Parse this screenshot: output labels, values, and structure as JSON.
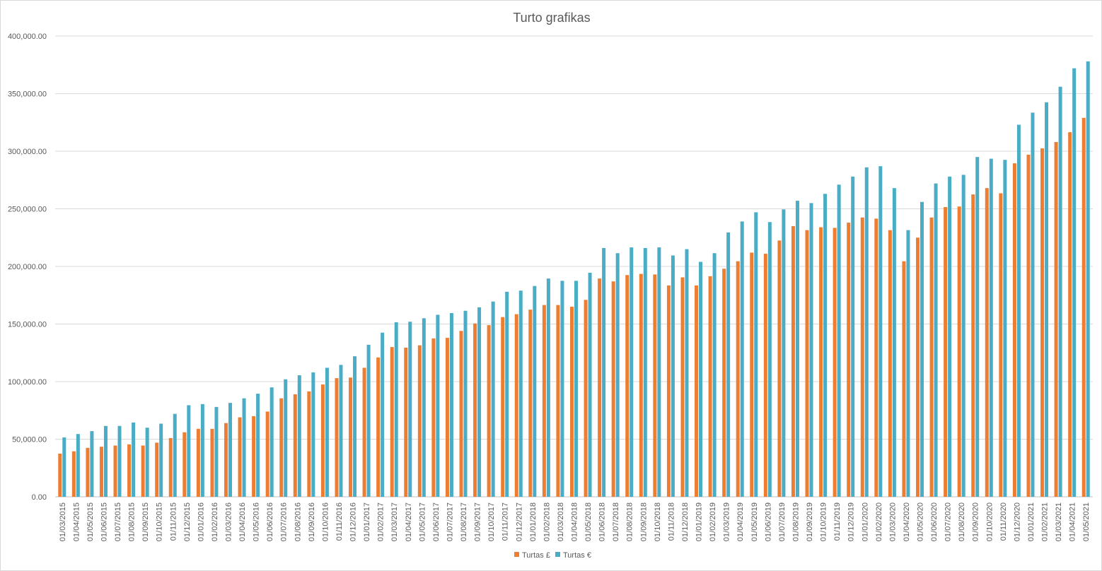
{
  "chart_data": {
    "type": "bar",
    "title": "Turto grafikas",
    "xlabel": "",
    "ylabel": "",
    "ylim": [
      0,
      400000
    ],
    "yticks": [
      "0.00",
      "50,000.00",
      "100,000.00",
      "150,000.00",
      "200,000.00",
      "250,000.00",
      "300,000.00",
      "350,000.00",
      "400,000.00"
    ],
    "grid": true,
    "legend_position": "bottom",
    "categories": [
      "01/03/2015",
      "01/04/2015",
      "01/05/2015",
      "01/06/2015",
      "01/07/2015",
      "01/08/2015",
      "01/09/2015",
      "01/10/2015",
      "01/11/2015",
      "01/12/2015",
      "01/01/2016",
      "01/02/2016",
      "01/03/2016",
      "01/04/2016",
      "01/05/2016",
      "01/06/2016",
      "01/07/2016",
      "01/08/2016",
      "01/09/2016",
      "01/10/2016",
      "01/11/2016",
      "01/12/2016",
      "01/01/2017",
      "01/02/2017",
      "01/03/2017",
      "01/04/2017",
      "01/05/2017",
      "01/06/2017",
      "01/07/2017",
      "01/08/2017",
      "01/09/2017",
      "01/10/2017",
      "01/11/2017",
      "01/12/2017",
      "01/01/2018",
      "01/02/2018",
      "01/03/2018",
      "01/04/2018",
      "01/05/2018",
      "01/06/2018",
      "01/07/2018",
      "01/08/2018",
      "01/09/2018",
      "01/10/2018",
      "01/11/2018",
      "01/12/2018",
      "01/01/2019",
      "01/02/2019",
      "01/03/2019",
      "01/04/2019",
      "01/05/2019",
      "01/06/2019",
      "01/07/2019",
      "01/08/2019",
      "01/09/2019",
      "01/10/2019",
      "01/11/2019",
      "01/12/2019",
      "01/01/2020",
      "01/02/2020",
      "01/03/2020",
      "01/04/2020",
      "01/05/2020",
      "01/06/2020",
      "01/07/2020",
      "01/08/2020",
      "01/09/2020",
      "01/10/2020",
      "01/11/2020",
      "01/12/2020",
      "01/01/2021",
      "01/02/2021",
      "01/03/2021",
      "01/04/2021",
      "01/05/2021"
    ],
    "series": [
      {
        "name": "Turtas £",
        "color": "#ED7D31",
        "values": [
          37500,
          39500,
          42500,
          43500,
          44500,
          45500,
          44500,
          47000,
          51000,
          56000,
          59000,
          59000,
          64000,
          69000,
          70000,
          74000,
          85500,
          89000,
          91500,
          97500,
          103000,
          103500,
          112000,
          121000,
          130000,
          129500,
          131500,
          137500,
          138000,
          144000,
          150500,
          149000,
          156000,
          158500,
          162500,
          166500,
          166500,
          165000,
          171000,
          189500,
          187000,
          192500,
          193500,
          193000,
          183500,
          190500,
          183500,
          191500,
          198000,
          204500,
          212000,
          211000,
          222500,
          235000,
          231500,
          234000,
          233500,
          238000,
          242500,
          241500,
          231500,
          204500,
          225000,
          242500,
          251500,
          252000,
          262500,
          268000,
          263500,
          289500,
          297000,
          302500,
          308000,
          316500,
          329000
        ]
      },
      {
        "name": "Turtas €",
        "color": "#4BACC6",
        "values": [
          51500,
          54500,
          57000,
          61500,
          61500,
          64500,
          60000,
          63500,
          72000,
          79500,
          80500,
          78000,
          81500,
          85500,
          89500,
          95000,
          102000,
          105500,
          108000,
          112000,
          114500,
          122000,
          132000,
          142500,
          151500,
          152000,
          155000,
          158000,
          159500,
          161500,
          164500,
          169500,
          178000,
          179000,
          183000,
          189500,
          187500,
          187500,
          194500,
          216000,
          211500,
          216500,
          216000,
          216500,
          209500,
          215000,
          204000,
          211500,
          229500,
          239000,
          247000,
          238500,
          249500,
          257000,
          255000,
          263000,
          271000,
          278000,
          286000,
          287000,
          268000,
          231500,
          256000,
          272000,
          278000,
          279500,
          295000,
          293500,
          292500,
          323000,
          333500,
          342500,
          356000,
          372000,
          378000
        ]
      }
    ]
  }
}
